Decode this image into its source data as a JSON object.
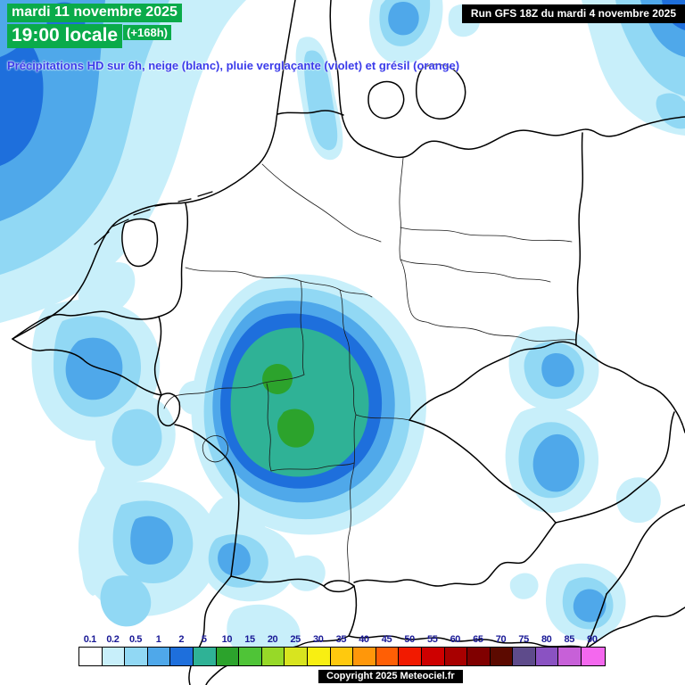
{
  "colors": {
    "header_highlight": "#0AAB4A",
    "description_text": "#3B3BEA",
    "legend_label": "#191996",
    "panel_bg": "#000000",
    "panel_text": "#FFFFFF"
  },
  "header": {
    "date_line": "mardi 11 novembre 2025",
    "time_value": "19:00 locale",
    "time_offset": "(+168h)",
    "description": "Précipitations HD sur 6h, neige (blanc), pluie verglaçante (violet) et grésil (orange)"
  },
  "run_info": {
    "label": "Run GFS 18Z du mardi 4 novembre 2025"
  },
  "footer": {
    "copyright": "Copyright 2025 Meteociel.fr"
  },
  "legend": {
    "values": [
      "0.1",
      "0.2",
      "0.5",
      "1",
      "2",
      "5",
      "10",
      "15",
      "20",
      "25",
      "30",
      "35",
      "40",
      "45",
      "50",
      "55",
      "60",
      "65",
      "70",
      "75",
      "80",
      "85",
      "90"
    ],
    "colors": [
      "#FFFFFF",
      "#C8EFFA",
      "#91D8F4",
      "#4FA8EA",
      "#1E6FDC",
      "#2FB296",
      "#2CA32C",
      "#4FC437",
      "#97D928",
      "#D8E41F",
      "#F8EF12",
      "#FFC90E",
      "#FF970A",
      "#FF5F05",
      "#F21A00",
      "#CE0000",
      "#A80000",
      "#800000",
      "#5C0A00",
      "#5E4B8B",
      "#8A52C2",
      "#C760D8",
      "#F468EE"
    ]
  }
}
